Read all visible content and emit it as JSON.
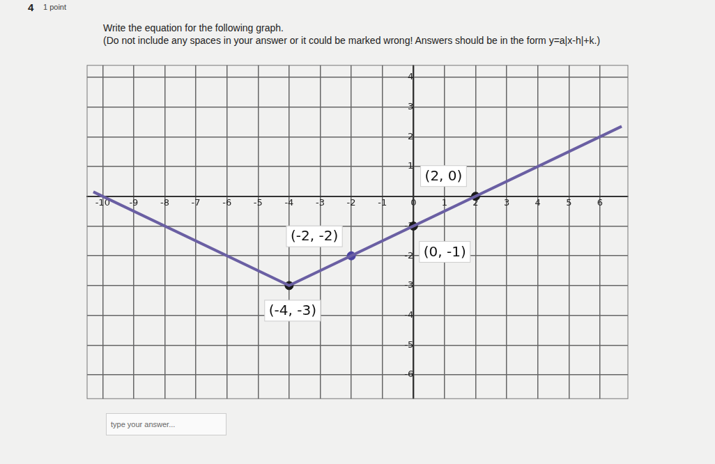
{
  "question": {
    "number": "4",
    "points": "1 point",
    "prompt": "Write the equation for the following graph.",
    "instructions": "(Do not include any spaces in your answer or it could be marked wrong! Answers should be in the form y=a|x-h|+k.)",
    "answer_placeholder": "type your answer..."
  },
  "chart_data": {
    "type": "line",
    "x": [
      -10.3,
      -4,
      6.7
    ],
    "values": [
      0.15,
      -3,
      2.35
    ],
    "color": "#6a5fa3",
    "annotations": [
      {
        "x": 2,
        "y": 0,
        "label": "(2, 0)",
        "color": "#1a1a1a"
      },
      {
        "x": 0,
        "y": -1,
        "label": "(0, -1)",
        "color": "#1a1a1a"
      },
      {
        "x": -2,
        "y": -2,
        "label": "(-2, -2)",
        "color": "#4a42a0"
      },
      {
        "x": -4,
        "y": -3,
        "label": "(-4, -3)",
        "color": "#1a1a1a"
      }
    ],
    "xlim": [
      -10.5,
      6.9
    ],
    "ylim": [
      -6.8,
      4.4
    ],
    "xticks": [
      -10,
      -9,
      -8,
      -7,
      -6,
      -5,
      -4,
      -3,
      -2,
      -1,
      0,
      1,
      2,
      3,
      4,
      5,
      6
    ],
    "yticks": [
      -6,
      -5,
      -4,
      -3,
      -2,
      -1,
      1,
      2,
      3,
      4
    ],
    "grid": true
  }
}
